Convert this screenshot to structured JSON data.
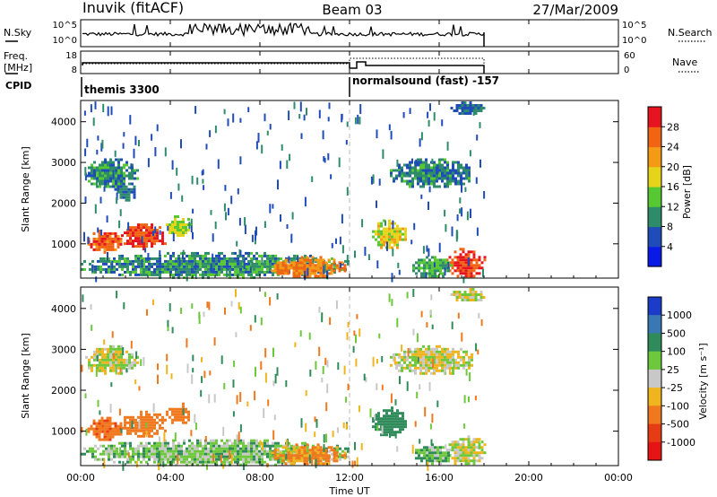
{
  "header": {
    "station": "Inuvik (fitACF)",
    "beam": "Beam 03",
    "date": "27/Mar/2009"
  },
  "panels": {
    "nsky": {
      "left_label": "N.Sky",
      "tick_top": "10^5",
      "tick_bottom": "10^0",
      "right_tick_top": "10^5",
      "right_tick_bottom": "10^0",
      "right_label": "N.Search"
    },
    "freq": {
      "left_label_top": "Freq.",
      "left_label_bottom": "[MHz]",
      "tick_top": "18",
      "tick_bottom": "8",
      "right_tick_top": "60",
      "right_tick_bottom": "0",
      "right_label": "Nave"
    },
    "cpid": {
      "label": "CPID",
      "segments": [
        {
          "label": "themis 3300",
          "start_hour": 0,
          "end_hour": 12
        },
        {
          "label": "normalsound (fast) -157",
          "start_hour": 12,
          "end_hour": 18
        }
      ]
    }
  },
  "power_panel": {
    "ylabel": "Slant Range [km]",
    "yticks": [
      "1000",
      "2000",
      "3000",
      "4000"
    ],
    "colorbar_label": "Power [dB]",
    "colorbar_ticks": [
      "4",
      "8",
      "12",
      "16",
      "20",
      "24",
      "28"
    ],
    "colorbar_colors": [
      "#0a1ae6",
      "#1f4cb8",
      "#2f8c6a",
      "#55c832",
      "#e6d41a",
      "#f59a14",
      "#f06414",
      "#e6141e"
    ]
  },
  "velocity_panel": {
    "ylabel": "Slant Range [km]",
    "yticks": [
      "1000",
      "2000",
      "3000",
      "4000"
    ],
    "colorbar_label": "Velocity [m s⁻¹]",
    "colorbar_ticks": [
      "1000",
      "500",
      "100",
      "25",
      "-25",
      "-100",
      "-500",
      "-1000"
    ],
    "colorbar_colors": [
      "#1a3cc8",
      "#3a78b4",
      "#2f8c5a",
      "#6ec83c",
      "#c8c8c8",
      "#f0b41e",
      "#f0781e",
      "#e63c14",
      "#e61414"
    ]
  },
  "xaxis": {
    "label": "Time UT",
    "ticks": [
      "00:00",
      "04:00",
      "08:00",
      "12:00",
      "16:00",
      "20:00",
      "00:00"
    ]
  },
  "chart_data": {
    "type": "heatmap",
    "x_unit": "hours UT",
    "xlim": [
      0,
      24
    ],
    "ylim_km": [
      180,
      4500
    ],
    "data_end_hour": 18,
    "mode_change_hour": 12,
    "power_blobs": [
      {
        "t0": 0.3,
        "t1": 1.8,
        "r0": 800,
        "r1": 1350,
        "dB": 26
      },
      {
        "t0": 1.8,
        "t1": 3.8,
        "r0": 900,
        "r1": 1500,
        "dB": 28
      },
      {
        "t0": 3.8,
        "t1": 4.9,
        "r0": 1200,
        "r1": 1700,
        "dB": 16
      },
      {
        "t0": 0.2,
        "t1": 2.5,
        "r0": 2400,
        "r1": 3100,
        "dB": 10
      },
      {
        "t0": 1.5,
        "t1": 2.5,
        "r0": 2100,
        "r1": 2500,
        "dB": 8
      },
      {
        "t0": 0.0,
        "t1": 12.0,
        "r0": 200,
        "r1": 800,
        "dB": 10
      },
      {
        "t0": 8.5,
        "t1": 11.8,
        "r0": 200,
        "r1": 700,
        "dB": 24
      },
      {
        "t0": 13.0,
        "t1": 14.5,
        "r0": 900,
        "r1": 1600,
        "dB": 18
      },
      {
        "t0": 13.8,
        "t1": 17.5,
        "r0": 2400,
        "r1": 3100,
        "dB": 9
      },
      {
        "t0": 16.3,
        "t1": 18.0,
        "r0": 200,
        "r1": 900,
        "dB": 28
      },
      {
        "t0": 14.8,
        "t1": 16.5,
        "r0": 200,
        "r1": 700,
        "dB": 12
      },
      {
        "t0": 16.5,
        "t1": 18.0,
        "r0": 4200,
        "r1": 4500,
        "dB": 8
      }
    ],
    "velocity_blobs": [
      {
        "t0": 0.3,
        "t1": 1.8,
        "r0": 800,
        "r1": 1350,
        "v": -450
      },
      {
        "t0": 1.8,
        "t1": 3.8,
        "r0": 900,
        "r1": 1500,
        "v": -300
      },
      {
        "t0": 3.8,
        "t1": 4.9,
        "r0": 1200,
        "r1": 1700,
        "v": -200
      },
      {
        "t0": 0.2,
        "t1": 2.5,
        "r0": 2400,
        "r1": 3100,
        "v": 0
      },
      {
        "t0": 0.0,
        "t1": 12.0,
        "r0": 200,
        "r1": 800,
        "v": 60
      },
      {
        "t0": 8.5,
        "t1": 11.8,
        "r0": 200,
        "r1": 700,
        "v": -120
      },
      {
        "t0": 13.0,
        "t1": 14.5,
        "r0": 900,
        "r1": 1600,
        "v": 200
      },
      {
        "t0": 13.8,
        "t1": 17.5,
        "r0": 2400,
        "r1": 3100,
        "v": 0
      },
      {
        "t0": 16.3,
        "t1": 18.0,
        "r0": 200,
        "r1": 900,
        "v": 0
      },
      {
        "t0": 14.8,
        "t1": 16.5,
        "r0": 200,
        "r1": 700,
        "v": 80
      },
      {
        "t0": 16.5,
        "t1": 18.0,
        "r0": 4200,
        "r1": 4500,
        "v": 0
      }
    ]
  }
}
